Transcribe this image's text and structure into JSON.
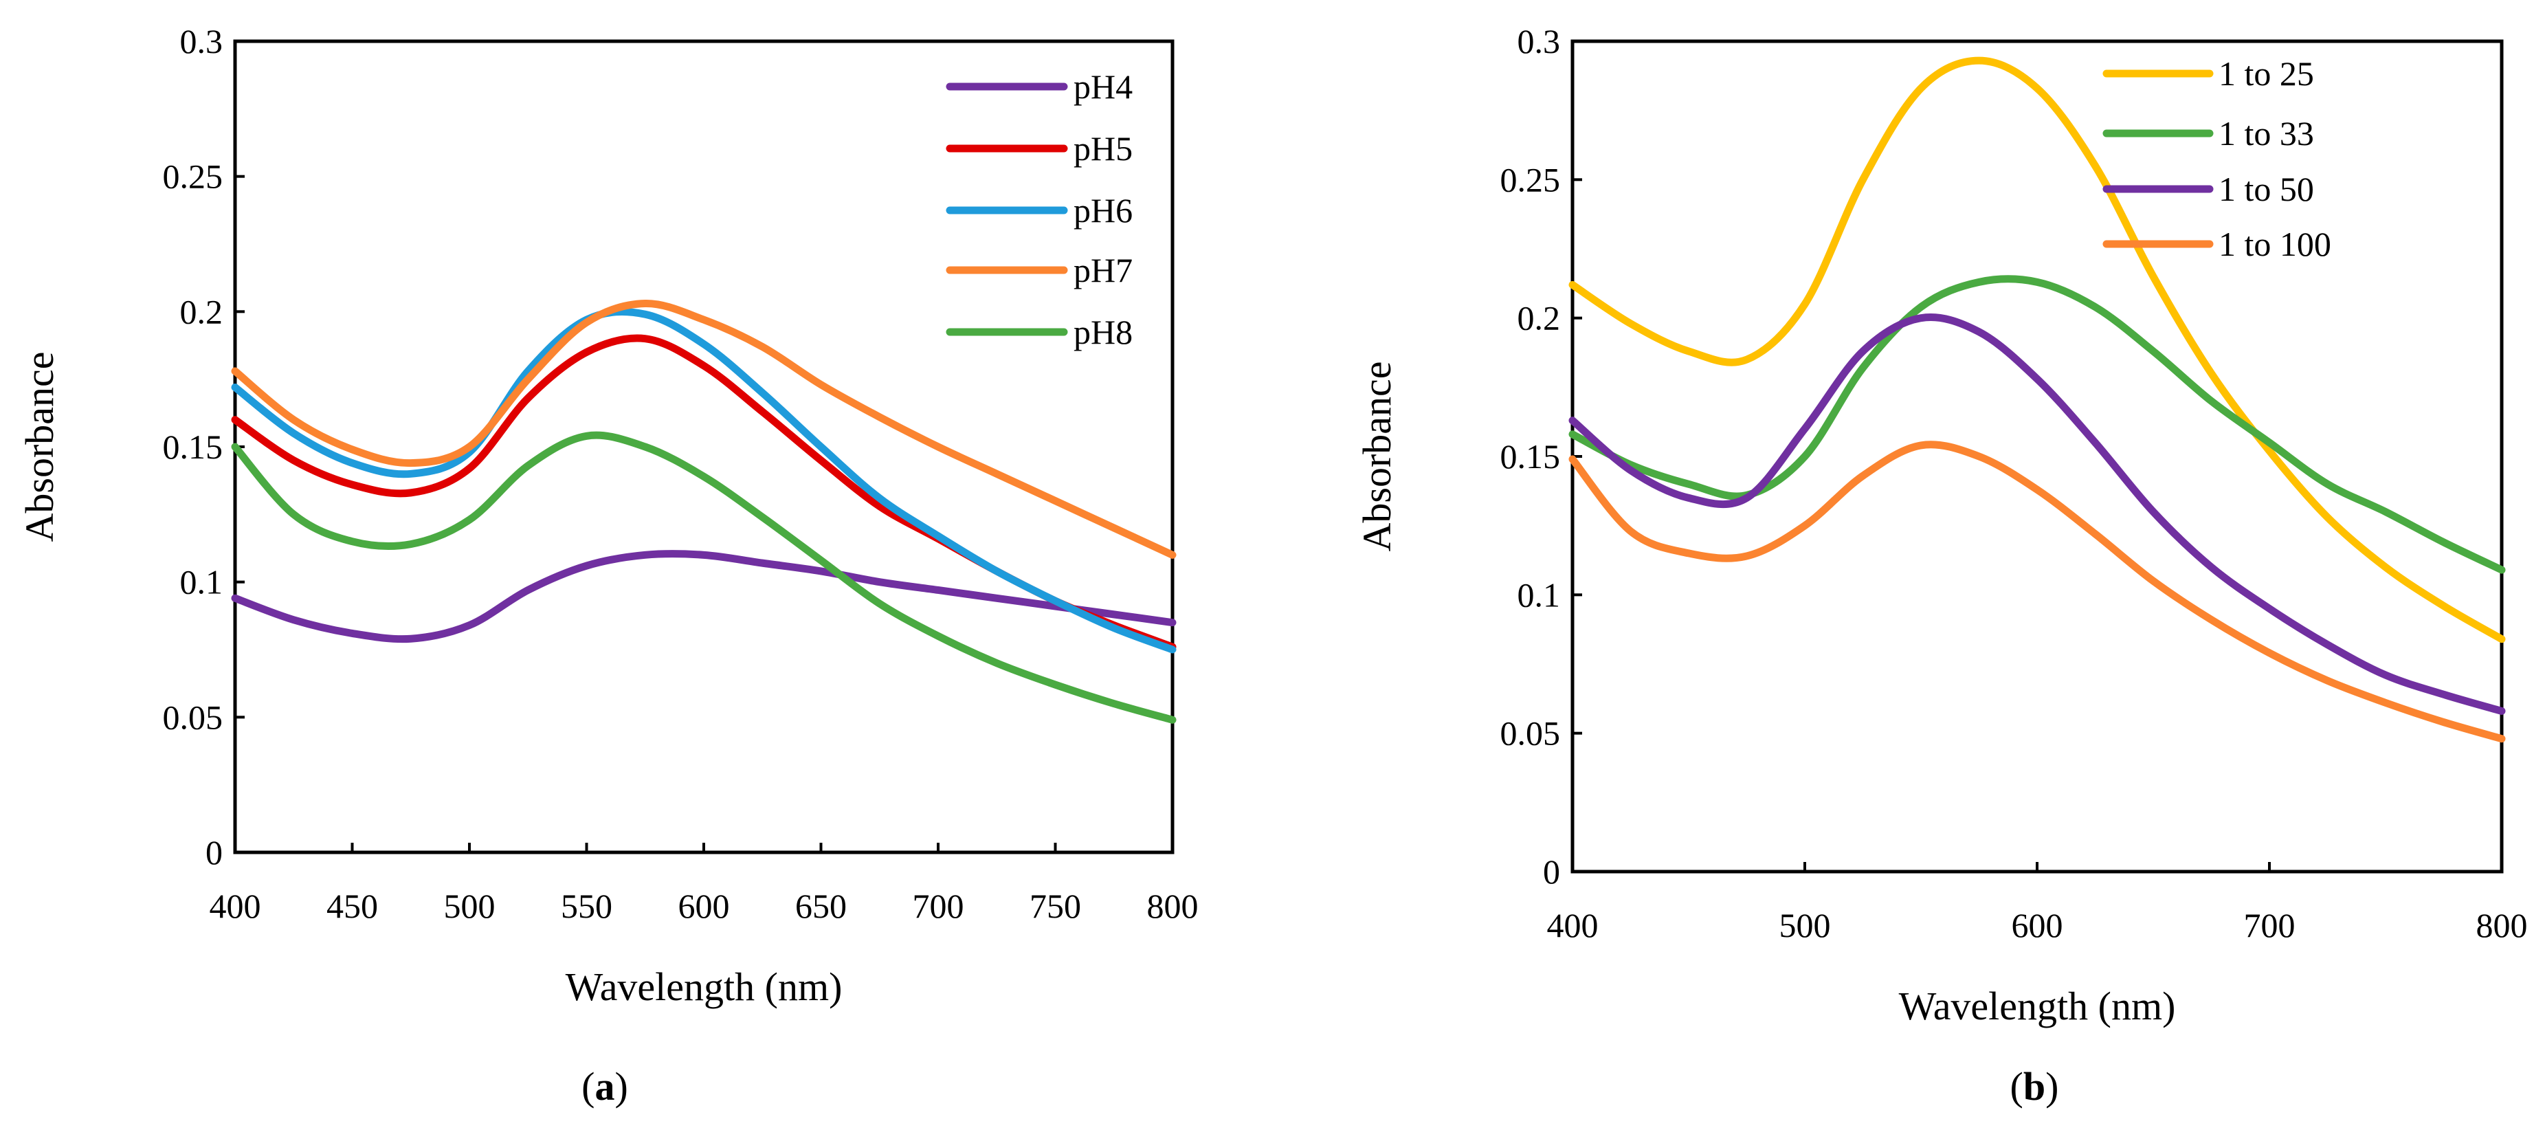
{
  "chart_data": [
    {
      "type": "line",
      "panel_label": "a",
      "xlabel": "Wavelength (nm)",
      "ylabel": "Absorbance",
      "xlim": [
        400,
        800
      ],
      "ylim": [
        0,
        0.3
      ],
      "xticks": [
        400,
        450,
        500,
        550,
        600,
        650,
        700,
        750,
        800
      ],
      "yticks": [
        0,
        0.05,
        0.1,
        0.15,
        0.2,
        0.25,
        0.3
      ],
      "legend_position": "top-right",
      "x": [
        400,
        425,
        450,
        475,
        500,
        525,
        550,
        575,
        600,
        625,
        650,
        675,
        700,
        725,
        750,
        775,
        800
      ],
      "series": [
        {
          "name": "pH4",
          "color": "#7030A0",
          "values": [
            0.094,
            0.086,
            0.081,
            0.079,
            0.084,
            0.097,
            0.106,
            0.11,
            0.11,
            0.107,
            0.104,
            0.1,
            0.097,
            0.094,
            0.091,
            0.088,
            0.085
          ]
        },
        {
          "name": "pH5",
          "color": "#E00000",
          "values": [
            0.16,
            0.145,
            0.136,
            0.133,
            0.142,
            0.168,
            0.185,
            0.19,
            0.18,
            0.163,
            0.145,
            0.128,
            0.116,
            0.104,
            0.093,
            0.084,
            0.076
          ]
        },
        {
          "name": "pH6",
          "color": "#1F9BDB",
          "values": [
            0.172,
            0.155,
            0.144,
            0.14,
            0.148,
            0.178,
            0.197,
            0.199,
            0.188,
            0.17,
            0.15,
            0.131,
            0.117,
            0.104,
            0.093,
            0.083,
            0.075
          ]
        },
        {
          "name": "pH7",
          "color": "#FB8430",
          "values": [
            0.178,
            0.16,
            0.149,
            0.144,
            0.15,
            0.175,
            0.196,
            0.203,
            0.197,
            0.187,
            0.173,
            0.161,
            0.15,
            0.14,
            0.13,
            0.12,
            0.11
          ]
        },
        {
          "name": "pH8",
          "color": "#4AAA42",
          "values": [
            0.15,
            0.125,
            0.115,
            0.114,
            0.123,
            0.143,
            0.154,
            0.15,
            0.139,
            0.124,
            0.108,
            0.092,
            0.08,
            0.07,
            0.062,
            0.055,
            0.049
          ]
        }
      ]
    },
    {
      "type": "line",
      "panel_label": "b",
      "xlabel": "Wavelength (nm)",
      "ylabel": "Absorbance",
      "xlim": [
        400,
        800
      ],
      "ylim": [
        0,
        0.3
      ],
      "xticks": [
        400,
        500,
        600,
        700,
        800
      ],
      "yticks": [
        0,
        0.05,
        0.1,
        0.15,
        0.2,
        0.25,
        0.3
      ],
      "legend_position": "top-right",
      "x": [
        400,
        425,
        450,
        475,
        500,
        525,
        550,
        575,
        600,
        625,
        650,
        675,
        700,
        725,
        750,
        775,
        800
      ],
      "series": [
        {
          "name": "1 to 25",
          "color": "#FFC000",
          "values": [
            0.212,
            0.198,
            0.188,
            0.185,
            0.205,
            0.25,
            0.283,
            0.293,
            0.283,
            0.255,
            0.215,
            0.18,
            0.152,
            0.128,
            0.11,
            0.096,
            0.084
          ]
        },
        {
          "name": "1 to 33",
          "color": "#4AAA42",
          "values": [
            0.158,
            0.147,
            0.14,
            0.136,
            0.15,
            0.182,
            0.204,
            0.213,
            0.213,
            0.204,
            0.188,
            0.17,
            0.155,
            0.14,
            0.13,
            0.119,
            0.109
          ]
        },
        {
          "name": "1 to 50",
          "color": "#7030A0",
          "values": [
            0.163,
            0.145,
            0.135,
            0.135,
            0.16,
            0.188,
            0.2,
            0.195,
            0.178,
            0.155,
            0.13,
            0.11,
            0.095,
            0.082,
            0.071,
            0.064,
            0.058
          ]
        },
        {
          "name": "1 to 100",
          "color": "#FB8430",
          "values": [
            0.149,
            0.123,
            0.115,
            0.114,
            0.125,
            0.143,
            0.154,
            0.15,
            0.138,
            0.122,
            0.105,
            0.091,
            0.079,
            0.069,
            0.061,
            0.054,
            0.048
          ]
        }
      ]
    }
  ]
}
